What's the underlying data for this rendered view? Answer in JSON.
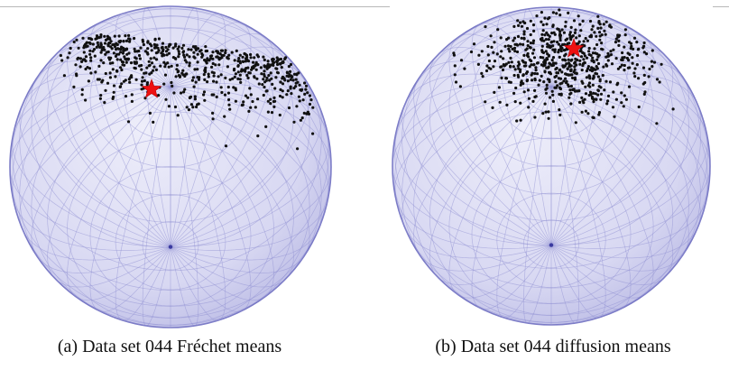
{
  "figure": {
    "panels": [
      {
        "caption": "(a) Data set 044 Fréchet means",
        "star_color": "#ee1111",
        "point_color": "#111111",
        "sphere_color": "#d8d8f2",
        "grid_color": "#8a8ad0"
      },
      {
        "caption": "(b) Data set 044 diffusion means",
        "star_color": "#ee1111",
        "point_color": "#111111",
        "sphere_color": "#d8d8f2",
        "grid_color": "#8a8ad0"
      }
    ]
  }
}
